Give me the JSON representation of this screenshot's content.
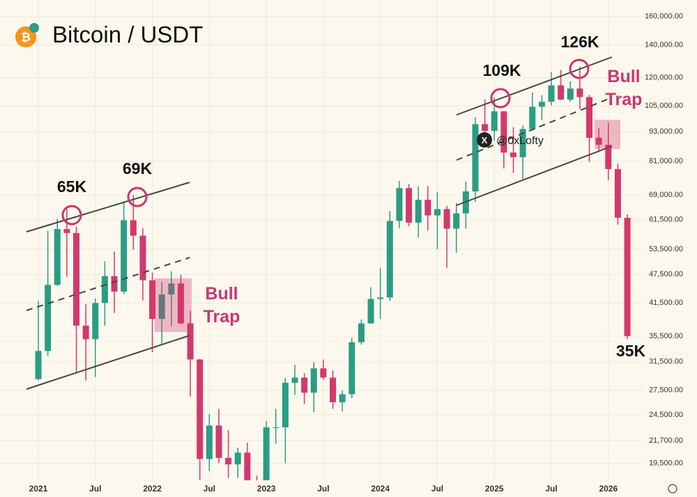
{
  "chart_data": {
    "type": "candlestick",
    "title": "Bitcoin / USDT",
    "watermark": "@0xLofty",
    "log_scale": true,
    "grid": true,
    "up_color": "#2a9d84",
    "down_color": "#d2396d",
    "categories": [
      "2021",
      null,
      null,
      null,
      null,
      null,
      "Jul",
      null,
      null,
      null,
      null,
      null,
      "2022",
      null,
      null,
      null,
      null,
      null,
      "Jul",
      null,
      null,
      null,
      null,
      null,
      "2023",
      null,
      null,
      null,
      null,
      null,
      "Jul",
      null,
      null,
      null,
      null,
      null,
      "2024",
      null,
      null,
      null,
      null,
      null,
      "Jul",
      null,
      null,
      null,
      null,
      null,
      "2025",
      null,
      null,
      null,
      null,
      null,
      "Jul",
      null,
      null,
      null,
      null,
      null,
      "2026",
      null,
      null
    ],
    "open": [
      29000,
      33100,
      45200,
      58800,
      57700,
      37300,
      35000,
      41500,
      47100,
      43800,
      61300,
      57000,
      46200,
      38500,
      43200,
      45500,
      37700,
      31800,
      19900,
      23300,
      20000,
      19400,
      20500,
      17200,
      16500,
      23100,
      23100,
      28500,
      29200,
      27200,
      30500,
      29200,
      26000,
      27000,
      34500,
      37700,
      42300,
      42600,
      61100,
      71300,
      60600,
      67500,
      62700,
      64600,
      58900,
      63300,
      70200,
      96400,
      93400,
      102400,
      84300,
      82500,
      94200,
      104600,
      107100,
      115700,
      108200,
      114000,
      109500,
      90400,
      87500,
      78000,
      62000
    ],
    "high": [
      41900,
      58300,
      61700,
      64800,
      59500,
      41300,
      42400,
      50500,
      52900,
      67000,
      69000,
      59000,
      47900,
      45800,
      48200,
      47400,
      40000,
      31900,
      24600,
      25200,
      22800,
      21000,
      21500,
      18400,
      23800,
      25200,
      29200,
      31000,
      29800,
      31400,
      31800,
      30200,
      27500,
      35200,
      38400,
      44700,
      48900,
      64000,
      73800,
      72700,
      71900,
      72000,
      70000,
      65600,
      66500,
      73600,
      99600,
      108300,
      109400,
      102500,
      95000,
      95800,
      111900,
      110500,
      123200,
      124500,
      117900,
      126200,
      110600,
      94500,
      97000,
      80000,
      63000
    ],
    "low": [
      28800,
      32300,
      45000,
      47000,
      30000,
      28800,
      29300,
      37300,
      39600,
      43300,
      53300,
      42000,
      32900,
      34300,
      37200,
      37600,
      26700,
      17600,
      18800,
      19500,
      18200,
      18200,
      15500,
      16300,
      16500,
      21400,
      19500,
      26900,
      25800,
      24800,
      28900,
      25200,
      24900,
      26500,
      34100,
      37600,
      38500,
      41900,
      59000,
      59600,
      56500,
      58400,
      53500,
      49000,
      52600,
      58900,
      66800,
      90500,
      89200,
      78200,
      76600,
      74400,
      93300,
      98200,
      105300,
      108000,
      107200,
      103500,
      80600,
      84500,
      74000,
      60000,
      35000
    ],
    "close": [
      33100,
      45200,
      58800,
      57700,
      37300,
      35000,
      41500,
      47100,
      43800,
      61300,
      57000,
      46200,
      38500,
      43200,
      45500,
      37700,
      31800,
      19900,
      23300,
      20000,
      19400,
      20500,
      17200,
      16500,
      23100,
      23100,
      28500,
      29200,
      27200,
      30500,
      29200,
      26000,
      27000,
      34500,
      37700,
      42300,
      42600,
      61100,
      71300,
      60600,
      67500,
      62700,
      64600,
      58900,
      63300,
      70200,
      96400,
      93400,
      102400,
      84300,
      82500,
      94200,
      104600,
      107100,
      115700,
      108200,
      114000,
      109500,
      90400,
      87500,
      78000,
      62000,
      35500
    ],
    "ylim": [
      18000,
      173000
    ],
    "yticks": [
      {
        "value": 160000,
        "label": "160,000.00"
      },
      {
        "value": 140000,
        "label": "140,000.00"
      },
      {
        "value": 120000,
        "label": "120,000.00"
      },
      {
        "value": 105000,
        "label": "105,000.00"
      },
      {
        "value": 93000,
        "label": "93,000.00"
      },
      {
        "value": 81000,
        "label": "81,000.00"
      },
      {
        "value": 69000,
        "label": "69,000.00"
      },
      {
        "value": 61500,
        "label": "61,500.00"
      },
      {
        "value": 53500,
        "label": "53,500.00"
      },
      {
        "value": 47500,
        "label": "47,500.00"
      },
      {
        "value": 41500,
        "label": "41,500.00"
      },
      {
        "value": 35500,
        "label": "35,500.00"
      },
      {
        "value": 31500,
        "label": "31,500.00"
      },
      {
        "value": 27500,
        "label": "27,500.00"
      },
      {
        "value": 24500,
        "label": "24,500.00"
      },
      {
        "value": 21700,
        "label": "21,700.00"
      },
      {
        "value": 19500,
        "label": "19,500.00"
      }
    ],
    "annotations": [
      "65K",
      "69K",
      "109K",
      "126K",
      "Bull Trap",
      "Bull Trap",
      "35K"
    ]
  }
}
